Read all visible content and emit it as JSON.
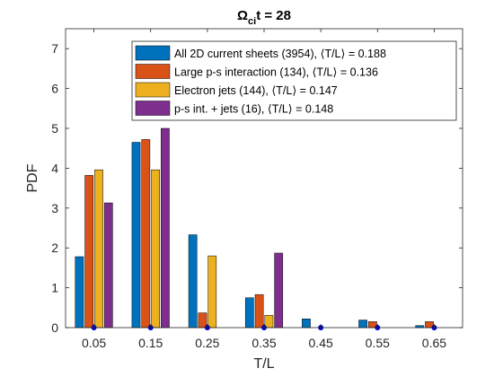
{
  "chart_data": {
    "type": "bar",
    "title": {
      "omega": "Ω",
      "sub": "ci",
      "rest": "t = 28"
    },
    "xlabel": "T/L",
    "ylabel": "PDF",
    "ylim": [
      0,
      7.5
    ],
    "yticks": [
      "0",
      "1",
      "2",
      "3",
      "4",
      "5",
      "6",
      "7"
    ],
    "categories": [
      "0.05",
      "0.15",
      "0.25",
      "0.35",
      "0.45",
      "0.55",
      "0.65"
    ],
    "series": [
      {
        "name": "All 2D current sheets (3954), ⟨T/L⟩ = 0.188",
        "color": "#0072BD",
        "values": [
          1.78,
          4.65,
          2.33,
          0.75,
          0.22,
          0.19,
          0.05
        ]
      },
      {
        "name": "Large p-s interaction (134), ⟨T/L⟩ = 0.136",
        "color": "#D95319",
        "values": [
          3.82,
          4.72,
          0.37,
          0.83,
          0,
          0.15,
          0.15
        ]
      },
      {
        "name": "Electron jets (144), ⟨T/L⟩ = 0.147",
        "color": "#EDB120",
        "values": [
          3.96,
          3.96,
          1.8,
          0.31,
          0,
          0,
          0
        ]
      },
      {
        "name": "p-s int. + jets (16), ⟨T/L⟩ = 0.148",
        "color": "#7E2F8E",
        "values": [
          3.13,
          5.0,
          0,
          1.87,
          0,
          0,
          0
        ]
      }
    ],
    "markers": {
      "y": 0,
      "color": "#0000CC",
      "shape": "dot"
    },
    "grid": false,
    "legend_position": "top-right"
  }
}
